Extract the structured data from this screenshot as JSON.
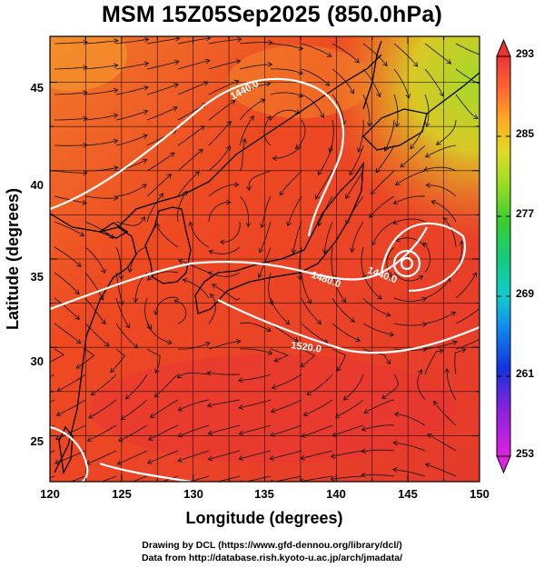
{
  "header": {
    "title": "MSM 15Z05Sep2025 (850.0hPa)"
  },
  "axes": {
    "x_label": "Longitude (degrees)",
    "y_label": "Latitude  (degrees)",
    "x_ticks": [
      120,
      125,
      130,
      135,
      140,
      145,
      150
    ],
    "y_ticks": [
      25,
      30,
      35,
      40,
      45
    ],
    "x_range": [
      120,
      150
    ],
    "y_range": [
      22.4,
      47.6
    ]
  },
  "colorbar": {
    "ticks": [
      293,
      285,
      277,
      269,
      261,
      253
    ],
    "range": [
      253,
      293
    ],
    "colors": [
      "#cc11cc",
      "#5522cc",
      "#1133dd",
      "#1188ee",
      "#11cccc",
      "#11cc88",
      "#33cc33",
      "#99dd22",
      "#dddd22",
      "#ffaa22",
      "#ff6633",
      "#ee3333"
    ]
  },
  "contours": {
    "labels": [
      "1440.0",
      "1480.0",
      "1440.0",
      "1520.0"
    ]
  },
  "footer": {
    "line1": "Drawing by DCL (https://www.gfd-dennou.org/library/dcl/)",
    "line2": "Data from http://database.rish.kyoto-u.ac.jp/arch/jmadata/"
  }
}
